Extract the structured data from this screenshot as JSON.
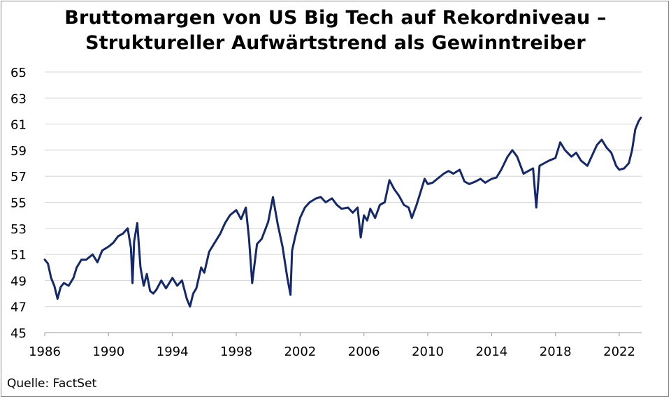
{
  "chart_data": {
    "type": "line",
    "title": "Bruttomargen von US Big Tech auf Rekordniveau –",
    "subtitle": "Struktureller Aufwärtstrend als Gewinntreiber",
    "xlabel": "",
    "ylabel": "",
    "source": "Quelle: FactSet",
    "xlim": [
      1986,
      2023.4
    ],
    "ylim": [
      45,
      65
    ],
    "x_ticks": [
      "1986",
      "1990",
      "1994",
      "1998",
      "2002",
      "2006",
      "2010",
      "2014",
      "2018",
      "2022"
    ],
    "y_ticks": [
      "45",
      "47",
      "49",
      "51",
      "53",
      "55",
      "57",
      "59",
      "61",
      "63",
      "65"
    ],
    "grid": "horizontal",
    "line_color": "#14286b",
    "series": [
      {
        "x": [
          1986.0,
          1986.2,
          1986.4,
          1986.6,
          1986.8,
          1987.0,
          1987.2,
          1987.5,
          1987.8,
          1988.0,
          1988.3,
          1988.6,
          1989.0,
          1989.3,
          1989.6,
          1990.0,
          1990.3,
          1990.6,
          1990.9,
          1991.2,
          1991.4,
          1991.5,
          1991.6,
          1991.8,
          1992.0,
          1992.2,
          1992.4,
          1992.6,
          1992.8,
          1993.0,
          1993.3,
          1993.6,
          1994.0,
          1994.3,
          1994.6,
          1994.9,
          1995.1,
          1995.3,
          1995.5,
          1995.8,
          1996.0,
          1996.3,
          1996.6,
          1997.0,
          1997.3,
          1997.6,
          1998.0,
          1998.3,
          1998.6,
          1998.8,
          1999.0,
          1999.3,
          1999.6,
          2000.0,
          2000.3,
          2000.6,
          2000.9,
          2001.2,
          2001.4,
          2001.5,
          2001.7,
          2002.0,
          2002.3,
          2002.6,
          2003.0,
          2003.3,
          2003.6,
          2004.0,
          2004.3,
          2004.6,
          2005.0,
          2005.3,
          2005.6,
          2005.8,
          2006.0,
          2006.2,
          2006.4,
          2006.7,
          2007.0,
          2007.3,
          2007.6,
          2007.9,
          2008.2,
          2008.5,
          2008.8,
          2009.0,
          2009.3,
          2009.6,
          2009.8,
          2010.0,
          2010.3,
          2010.6,
          2011.0,
          2011.3,
          2011.6,
          2012.0,
          2012.3,
          2012.6,
          2013.0,
          2013.3,
          2013.6,
          2014.0,
          2014.3,
          2014.6,
          2015.0,
          2015.3,
          2015.6,
          2016.0,
          2016.3,
          2016.6,
          2016.8,
          2017.0,
          2017.3,
          2017.6,
          2018.0,
          2018.3,
          2018.6,
          2019.0,
          2019.3,
          2019.6,
          2020.0,
          2020.3,
          2020.6,
          2020.9,
          2021.2,
          2021.5,
          2021.8,
          2022.0,
          2022.3,
          2022.6,
          2022.8,
          2023.0,
          2023.2,
          2023.35
        ],
        "values": [
          50.6,
          50.3,
          49.2,
          48.6,
          47.6,
          48.5,
          48.8,
          48.6,
          49.2,
          50.0,
          50.6,
          50.6,
          51.0,
          50.4,
          51.3,
          51.6,
          51.9,
          52.4,
          52.6,
          53.0,
          51.5,
          48.8,
          52.0,
          53.4,
          50.0,
          48.6,
          49.5,
          48.2,
          48.0,
          48.3,
          49.0,
          48.4,
          49.2,
          48.6,
          49.0,
          47.6,
          47.0,
          48.0,
          48.4,
          50.0,
          49.6,
          51.2,
          51.8,
          52.6,
          53.4,
          54.0,
          54.4,
          53.7,
          54.6,
          52.2,
          48.8,
          51.8,
          52.2,
          53.5,
          55.4,
          53.3,
          51.6,
          49.2,
          47.9,
          51.3,
          52.4,
          53.8,
          54.6,
          55.0,
          55.3,
          55.4,
          55.0,
          55.3,
          54.8,
          54.5,
          54.6,
          54.2,
          54.6,
          52.3,
          54.0,
          53.6,
          54.5,
          53.8,
          54.8,
          55.0,
          56.7,
          56.0,
          55.5,
          54.8,
          54.6,
          53.8,
          54.8,
          56.0,
          56.8,
          56.4,
          56.5,
          56.8,
          57.2,
          57.4,
          57.2,
          57.5,
          56.6,
          56.4,
          56.6,
          56.8,
          56.5,
          56.8,
          56.9,
          57.5,
          58.5,
          59.0,
          58.5,
          57.2,
          57.4,
          57.6,
          54.6,
          57.8,
          58.0,
          58.2,
          58.4,
          59.6,
          59.0,
          58.5,
          58.8,
          58.2,
          57.8,
          58.6,
          59.4,
          59.8,
          59.2,
          58.8,
          57.8,
          57.5,
          57.6,
          58.0,
          59.0,
          60.6,
          61.2,
          61.5
        ]
      }
    ]
  }
}
